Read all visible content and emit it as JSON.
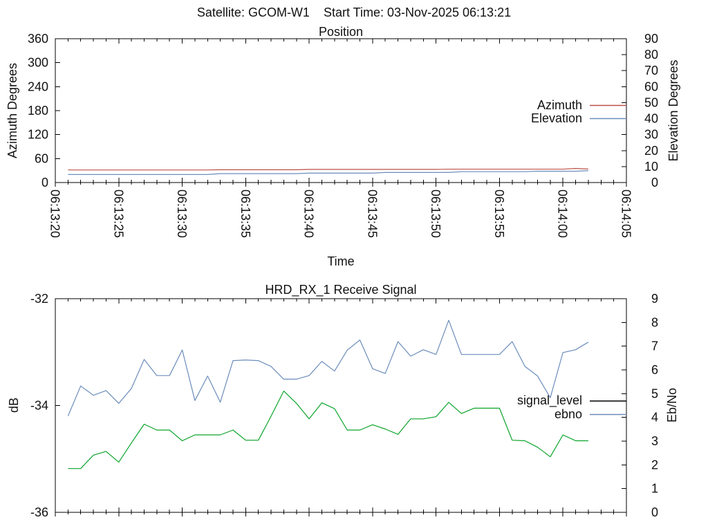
{
  "header": {
    "title": "Satellite: GCOM-W1    Start Time: 03-Nov-2025 06:13:21"
  },
  "colors": {
    "azimuth_red": "#bb4f47",
    "blue": "#6b8cbb",
    "signal_green": "#0aa32a",
    "legend_black": "#000000",
    "axis": "#000000",
    "background": "#ffffff"
  },
  "chart_data": [
    {
      "type": "line",
      "title": "Position",
      "xlabel": "Time",
      "x_axis": {
        "range_seconds": [
          0,
          45
        ],
        "major_tick_seconds": 5,
        "minor_tick_seconds": 1,
        "labels": [
          "06:13:20",
          "06:13:25",
          "06:13:30",
          "06:13:35",
          "06:13:40",
          "06:13:45",
          "06:13:50",
          "06:13:55",
          "06:14:00",
          "06:14:05"
        ],
        "show_labels": true
      },
      "left_axis": {
        "label": "Azimuth Degrees",
        "range": [
          0,
          360
        ],
        "ticks": [
          0,
          60,
          120,
          180,
          240,
          300,
          360
        ]
      },
      "right_axis": {
        "label": "Elevation Degrees",
        "range": [
          0,
          90
        ],
        "ticks": [
          0,
          10,
          20,
          30,
          40,
          50,
          60,
          70,
          80,
          90
        ]
      },
      "legend": [
        {
          "label": "Azimuth",
          "color": "#bb4f47"
        },
        {
          "label": "Elevation",
          "color": "#6b8cbb"
        }
      ],
      "t_start_seconds": 1,
      "t_step_seconds": 1,
      "series": [
        {
          "name": "Azimuth",
          "axis": "left",
          "color": "#bb4f47",
          "values": [
            31.5,
            31.5,
            31.5,
            31.5,
            31.5,
            31.5,
            31.5,
            31.5,
            31.5,
            31.5,
            31.5,
            31.5,
            32,
            32,
            32,
            32,
            32,
            32,
            32,
            32.8,
            32.8,
            32.8,
            32.8,
            32.8,
            32.8,
            32.8,
            32.8,
            32.8,
            32.8,
            32.8,
            33.4,
            33.4,
            33.4,
            33.4,
            33.4,
            33.4,
            33.4,
            33.4,
            33.4,
            33.4,
            35.3,
            33.8
          ]
        },
        {
          "name": "Elevation",
          "axis": "right",
          "color": "#6b8cbb",
          "values": [
            5,
            5,
            5,
            5,
            5,
            5,
            5,
            5,
            5,
            5,
            5,
            5,
            5.6,
            5.6,
            5.6,
            5.6,
            5.6,
            5.6,
            5.6,
            5.9,
            5.9,
            5.9,
            5.9,
            5.9,
            5.9,
            6.3,
            6.3,
            6.3,
            6.3,
            6.3,
            6.3,
            6.8,
            6.8,
            6.8,
            6.8,
            6.8,
            6.8,
            7.1,
            7.1,
            7.1,
            7.1,
            7.4
          ]
        }
      ]
    },
    {
      "type": "line",
      "title": "HRD_RX_1 Receive Signal",
      "xlabel": "",
      "x_axis": {
        "range_seconds": [
          0,
          45
        ],
        "major_tick_seconds": 5,
        "minor_tick_seconds": 1,
        "labels": [],
        "show_labels": false
      },
      "left_axis": {
        "label": "dB",
        "range": [
          -36,
          -32
        ],
        "ticks": [
          -36,
          -34,
          -32
        ]
      },
      "right_axis": {
        "label": "Eb/No",
        "range": [
          0,
          9
        ],
        "ticks": [
          0,
          1,
          2,
          3,
          4,
          5,
          6,
          7,
          8,
          9
        ]
      },
      "legend": [
        {
          "label": "signal_level",
          "color": "#000000"
        },
        {
          "label": "ebno",
          "color": "#6b8cbb"
        }
      ],
      "t_start_seconds": 1,
      "t_step_seconds": 1,
      "series": [
        {
          "name": "signal_level",
          "axis": "left",
          "color": "#0aa32a",
          "values": [
            -35.18,
            -35.18,
            -34.93,
            -34.86,
            -35.06,
            -34.7,
            -34.35,
            -34.46,
            -34.46,
            -34.66,
            -34.55,
            -34.55,
            -34.55,
            -34.46,
            -34.65,
            -34.65,
            -34.2,
            -33.73,
            -33.96,
            -34.25,
            -33.95,
            -34.06,
            -34.46,
            -34.46,
            -34.36,
            -34.44,
            -34.54,
            -34.25,
            -34.25,
            -34.21,
            -33.94,
            -34.15,
            -34.05,
            -34.05,
            -34.05,
            -34.65,
            -34.66,
            -34.78,
            -34.96,
            -34.55,
            -34.66,
            -34.66
          ]
        },
        {
          "name": "ebno",
          "axis": "right",
          "color": "#6b8cbb",
          "values": [
            4.06,
            5.32,
            4.93,
            5.13,
            4.59,
            5.22,
            6.44,
            5.76,
            5.76,
            6.84,
            4.71,
            5.74,
            4.64,
            6.39,
            6.42,
            6.39,
            6.15,
            5.61,
            5.61,
            5.76,
            6.36,
            5.95,
            6.83,
            7.26,
            6.05,
            5.85,
            7.19,
            6.58,
            6.85,
            6.65,
            8.09,
            6.65,
            6.65,
            6.65,
            6.65,
            7.19,
            6.15,
            5.74,
            4.83,
            6.73,
            6.85,
            7.17
          ]
        }
      ]
    }
  ]
}
